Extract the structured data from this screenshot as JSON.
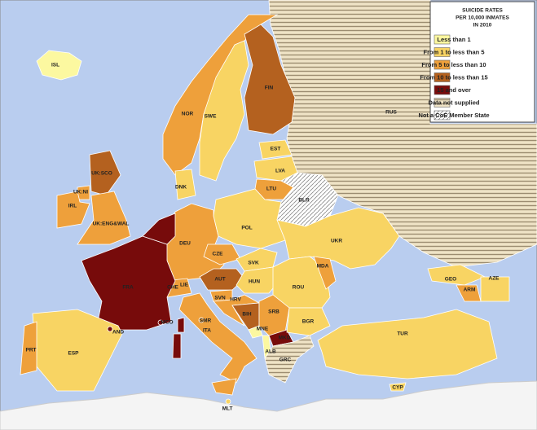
{
  "legend": {
    "title": [
      "SUICIDE RATES",
      "PER 10,000 INMATES",
      "IN 2010"
    ],
    "items": [
      {
        "label": "Less than 1",
        "color": "#fcf8a0"
      },
      {
        "label": "From 1 to less than 5",
        "color": "#f8d463"
      },
      {
        "label": "From 5 to less than 10",
        "color": "#eea03b"
      },
      {
        "label": "From 10 to less than 15",
        "color": "#b4611f"
      },
      {
        "label": "15 and over",
        "color": "#770b0b"
      },
      {
        "label": "Data not supplied",
        "color": "#efe3c6",
        "hatch": "horizontal"
      },
      {
        "label": "Not a CoE Member State",
        "color": "#ffffff",
        "hatch": "diagonal"
      }
    ]
  },
  "countries": [
    {
      "label": "ISL",
      "category": 0
    },
    {
      "label": "NOR",
      "category": 2
    },
    {
      "label": "SWE",
      "category": 1
    },
    {
      "label": "FIN",
      "category": 3
    },
    {
      "label": "RUS",
      "category": 5
    },
    {
      "label": "EST",
      "category": 1
    },
    {
      "label": "LVA",
      "category": 1
    },
    {
      "label": "LTU",
      "category": 2
    },
    {
      "label": "BLR",
      "category": 6
    },
    {
      "label": "DNK",
      "category": 1
    },
    {
      "label": "UK:SCO",
      "category": 3
    },
    {
      "label": "UK:NI",
      "category": 2
    },
    {
      "label": "IRL",
      "category": 2
    },
    {
      "label": "UK:ENG&WAL",
      "category": 2
    },
    {
      "label": "DEU",
      "category": 2
    },
    {
      "label": "POL",
      "category": 1
    },
    {
      "label": "UKR",
      "category": 1
    },
    {
      "label": "CZE",
      "category": 2
    },
    {
      "label": "SVK",
      "category": 1
    },
    {
      "label": "AUT",
      "category": 3
    },
    {
      "label": "CHE",
      "category": 2
    },
    {
      "label": "LIE",
      "category": 2
    },
    {
      "label": "HUN",
      "category": 1
    },
    {
      "label": "MDA",
      "category": 2
    },
    {
      "label": "ROU",
      "category": 1
    },
    {
      "label": "SVN",
      "category": 2
    },
    {
      "label": "HRV",
      "category": 2
    },
    {
      "label": "BIH",
      "category": 3
    },
    {
      "label": "SRB",
      "category": 2
    },
    {
      "label": "MNE",
      "category": 0
    },
    {
      "label": "ALB",
      "category": 0
    },
    {
      "label": "MKD",
      "category": 4
    },
    {
      "label": "GRC",
      "category": 5
    },
    {
      "label": "BGR",
      "category": 1
    },
    {
      "label": "TUR",
      "category": 1
    },
    {
      "label": "CYP",
      "category": 1
    },
    {
      "label": "GEO",
      "category": 1
    },
    {
      "label": "ARM",
      "category": 2
    },
    {
      "label": "AZE",
      "category": 1
    },
    {
      "label": "FRA",
      "category": 4
    },
    {
      "label": "AND",
      "category": 4
    },
    {
      "label": "MCO",
      "category": 4
    },
    {
      "label": "SMR",
      "category": 2
    },
    {
      "label": "ITA",
      "category": 2
    },
    {
      "label": "ESP",
      "category": 1
    },
    {
      "label": "PRT",
      "category": 2
    },
    {
      "label": "MLT",
      "category": 1
    }
  ]
}
